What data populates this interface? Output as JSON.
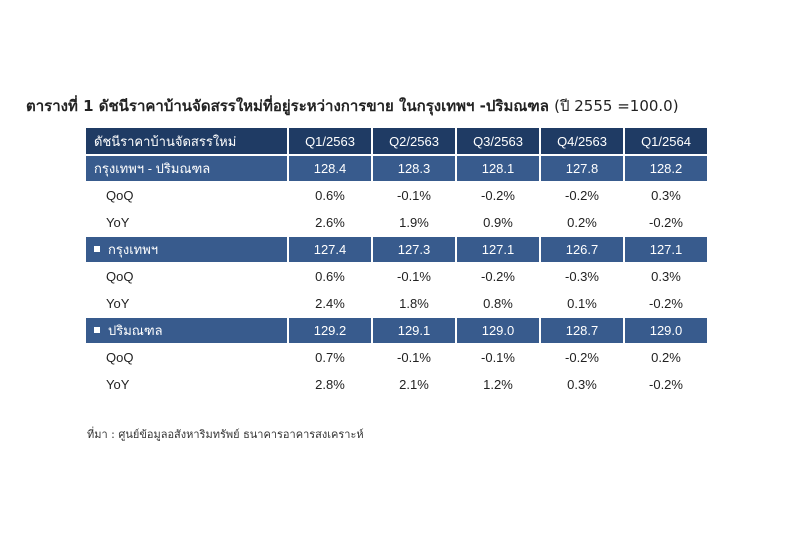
{
  "title": {
    "main": "ตารางที่ 1 ดัชนีราคาบ้านจัดสรรใหม่ที่อยู่ระหว่างการขาย ในกรุงเทพฯ -ปริมณฑล",
    "base_year": "(ปี 2555 =100.0)"
  },
  "table": {
    "header_label": "ดัชนีราคาบ้านจัดสรรใหม่",
    "columns": [
      "Q1/2563",
      "Q2/2563",
      "Q3/2563",
      "Q4/2563",
      "Q1/2564"
    ],
    "groups": [
      {
        "label": "กรุงเทพฯ - ปริมณฑล",
        "bullet": false,
        "values": [
          "128.4",
          "128.3",
          "128.1",
          "127.8",
          "128.2"
        ],
        "rows": [
          {
            "label": "QoQ",
            "values": [
              "0.6%",
              "-0.1%",
              "-0.2%",
              "-0.2%",
              "0.3%"
            ]
          },
          {
            "label": "YoY",
            "values": [
              "2.6%",
              "1.9%",
              "0.9%",
              "0.2%",
              "-0.2%"
            ]
          }
        ]
      },
      {
        "label": "กรุงเทพฯ",
        "bullet": true,
        "values": [
          "127.4",
          "127.3",
          "127.1",
          "126.7",
          "127.1"
        ],
        "rows": [
          {
            "label": "QoQ",
            "values": [
              "0.6%",
              "-0.1%",
              "-0.2%",
              "-0.3%",
              "0.3%"
            ]
          },
          {
            "label": "YoY",
            "values": [
              "2.4%",
              "1.8%",
              "0.8%",
              "0.1%",
              "-0.2%"
            ]
          }
        ]
      },
      {
        "label": "ปริมณฑล",
        "bullet": true,
        "values": [
          "129.2",
          "129.1",
          "129.0",
          "128.7",
          "129.0"
        ],
        "rows": [
          {
            "label": "QoQ",
            "values": [
              "0.7%",
              "-0.1%",
              "-0.1%",
              "-0.2%",
              "0.2%"
            ]
          },
          {
            "label": "YoY",
            "values": [
              "2.8%",
              "2.1%",
              "1.2%",
              "0.3%",
              "-0.2%"
            ]
          }
        ]
      }
    ]
  },
  "colors": {
    "header_bg": "#1f3b64",
    "group_bg": "#385b8d",
    "negative": "#e0261c"
  },
  "source": "ที่มา : ศูนย์ข้อมูลอสังหาริมทรัพย์ ธนาคารอาคารสงเคราะห์"
}
